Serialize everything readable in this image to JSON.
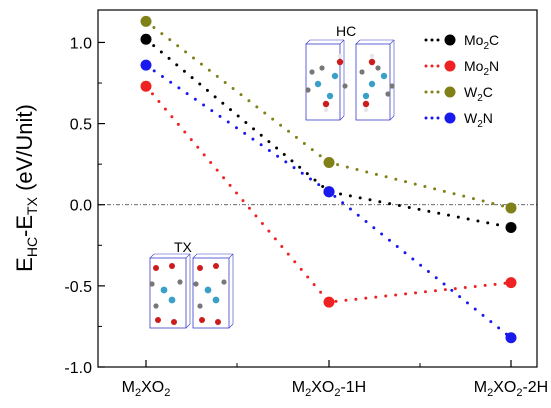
{
  "chart_data": {
    "type": "scatter",
    "categories": [
      "M₂XO₂",
      "M₂XO₂-1H",
      "M₂XO₂-2H"
    ],
    "ylabel": {
      "base": "E",
      "sub1": "HC",
      "mid": "-E",
      "sub2": "TX",
      "rest": " (eV/Unit)"
    },
    "ylim": [
      -1.0,
      1.2
    ],
    "yticks": [
      {
        "v": 1.0,
        "label": "1.0"
      },
      {
        "v": 0.5,
        "label": "0.5"
      },
      {
        "v": 0.0,
        "label": "0.0"
      },
      {
        "v": -0.5,
        "label": "-0.5"
      },
      {
        "v": -1.0,
        "label": "-1.0"
      }
    ],
    "xticks": [
      {
        "pre": "M",
        "sub1": "2",
        "mid": "XO",
        "sub2": "2",
        "post": ""
      },
      {
        "pre": "M",
        "sub1": "2",
        "mid": "XO",
        "sub2": "2",
        "post": "-1H"
      },
      {
        "pre": "M",
        "sub1": "2",
        "mid": "XO",
        "sub2": "2",
        "post": "-2H"
      }
    ],
    "reference_line": 0.0,
    "series": [
      {
        "name": "Mo₂C",
        "legend_main": "Mo",
        "legend_sub": "2",
        "legend_tail": "C",
        "color": "#000000",
        "values": [
          1.02,
          0.08,
          -0.14
        ]
      },
      {
        "name": "Mo₂N",
        "legend_main": "Mo",
        "legend_sub": "2",
        "legend_tail": "N",
        "color": "#ee2222",
        "values": [
          0.73,
          -0.6,
          -0.48
        ]
      },
      {
        "name": "W₂C",
        "legend_main": "W",
        "legend_sub": "2",
        "legend_tail": "C",
        "color": "#808019",
        "values": [
          1.13,
          0.26,
          -0.02
        ]
      },
      {
        "name": "W₂N",
        "legend_main": "W",
        "legend_sub": "2",
        "legend_tail": "N",
        "color": "#1a1aee",
        "values": [
          0.86,
          0.08,
          -0.82
        ]
      }
    ],
    "insets": [
      {
        "label": "HC"
      },
      {
        "label": "TX"
      }
    ]
  }
}
